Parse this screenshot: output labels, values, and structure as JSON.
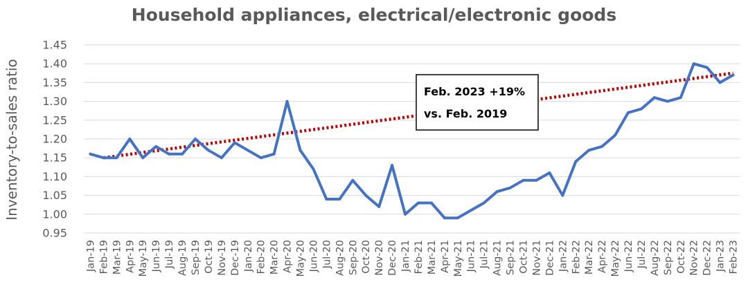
{
  "chart_data": {
    "type": "line",
    "title": "Household appliances, electrical/electronic goods",
    "ylabel": "Inventory-to-sales ratio",
    "xlabel": "",
    "ylim": [
      0.95,
      1.45
    ],
    "yticks": [
      "1.45",
      "1.40",
      "1.35",
      "1.30",
      "1.25",
      "1.20",
      "1.15",
      "1.10",
      "1.05",
      "1.00",
      "0.95"
    ],
    "grid": true,
    "legend": "none",
    "categories": [
      "Jan-19",
      "Feb-19",
      "Mar-19",
      "Apr-19",
      "May-19",
      "Jun-19",
      "Jul-19",
      "Aug-19",
      "Sep-19",
      "Oct-19",
      "Nov-19",
      "Dec-19",
      "Jan-20",
      "Feb-20",
      "Mar-20",
      "Apr-20",
      "May-20",
      "Jun-20",
      "Jul-20",
      "Aug-20",
      "Sep-20",
      "Oct-20",
      "Nov-20",
      "Dec-20",
      "Jan-21",
      "Feb-21",
      "Mar-21",
      "Apr-21",
      "May-21",
      "Jun-21",
      "Jul-21",
      "Aug-21",
      "Sep-21",
      "Oct-21",
      "Nov-21",
      "Dec-21",
      "Jan-22",
      "Feb-22",
      "Mar-22",
      "Apr-22",
      "May-22",
      "Jun-22",
      "Jul-22",
      "Aug-22",
      "Sep-22",
      "Oct-22",
      "Nov-22",
      "Dec-22",
      "Jan-23",
      "Feb-23"
    ],
    "series": [
      {
        "color": "#4472c4",
        "values": [
          1.16,
          1.15,
          1.15,
          1.2,
          1.15,
          1.18,
          1.16,
          1.16,
          1.2,
          1.17,
          1.15,
          1.19,
          1.17,
          1.15,
          1.16,
          1.3,
          1.17,
          1.12,
          1.04,
          1.04,
          1.09,
          1.05,
          1.02,
          1.13,
          1.0,
          1.03,
          1.03,
          0.99,
          0.99,
          1.01,
          1.03,
          1.06,
          1.07,
          1.09,
          1.09,
          1.11,
          1.05,
          1.14,
          1.17,
          1.18,
          1.21,
          1.27,
          1.28,
          1.31,
          1.3,
          1.31,
          1.4,
          1.39,
          1.35,
          1.37
        ]
      }
    ],
    "trendline": {
      "color": "#c00000",
      "style": "dotted",
      "from": {
        "x": "Feb-19",
        "y": 1.15
      },
      "to": {
        "x": "Feb-23",
        "y": 1.375
      }
    },
    "annotation": {
      "lines": [
        "Feb. 2023 +19%",
        "vs. Feb. 2019"
      ]
    }
  }
}
